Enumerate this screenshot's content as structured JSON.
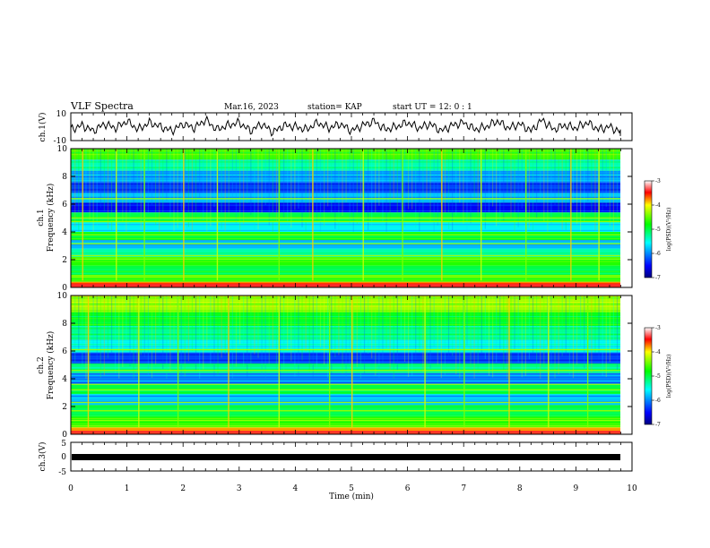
{
  "header": {
    "title": "VLF Spectra",
    "date": "Mar.16, 2023",
    "station": "station= KAP",
    "start": "start  UT  =   12: 0  : 1"
  },
  "chart_data": [
    {
      "type": "line",
      "name": "ch1-waveform",
      "ylabel": "ch.1(V)",
      "ylim": [
        -10,
        10
      ],
      "y_ticks": [
        "10",
        "-10"
      ],
      "x": [
        0,
        0.2,
        0.4,
        0.6,
        0.8,
        1.0,
        1.2,
        1.4,
        1.6,
        1.8,
        2.0,
        2.2,
        2.4,
        2.6,
        2.8,
        3.0,
        3.2,
        3.4,
        3.6,
        3.8,
        4.0,
        4.2,
        4.4,
        4.6,
        4.8,
        5.0,
        5.2,
        5.4,
        5.6,
        5.8,
        6.0,
        6.2,
        6.4,
        6.6,
        6.8,
        7.0,
        7.2,
        7.4,
        7.6,
        7.8,
        8.0,
        8.2,
        8.4,
        8.6,
        8.8,
        9.0,
        9.2,
        9.4,
        9.6,
        9.8
      ],
      "y": [
        -2,
        1,
        -3,
        2,
        -1,
        4,
        -2,
        3,
        0,
        -3,
        2,
        -1,
        5,
        -2,
        1,
        3,
        -3,
        2,
        -4,
        1,
        0,
        -2,
        3,
        -1,
        2,
        -3,
        1,
        4,
        -2,
        0,
        3,
        -1,
        2,
        -3,
        1,
        3,
        -2,
        0,
        4,
        -1,
        2,
        -3,
        5,
        -2,
        1,
        -1,
        3,
        -2,
        0,
        -4
      ]
    },
    {
      "type": "heatmap",
      "name": "ch1-spectrogram",
      "ylabel": "ch.1\nFrequency (kHz)",
      "ylim": [
        0,
        10
      ],
      "y_ticks": [
        "0",
        "2",
        "4",
        "6",
        "8",
        "10"
      ],
      "colorbar": {
        "label": "log(PSD)(V²/Hz)",
        "range": [
          -7,
          -3
        ],
        "ticks": [
          "-3",
          "-4",
          "-5",
          "-6",
          "-7"
        ]
      },
      "bands_khz": [
        {
          "f0": 9.2,
          "f1": 10,
          "level": -4.6
        },
        {
          "f0": 8.4,
          "f1": 9.2,
          "level": -5.3
        },
        {
          "f0": 7.6,
          "f1": 8.4,
          "level": -5.9
        },
        {
          "f0": 6.8,
          "f1": 7.6,
          "level": -6.3
        },
        {
          "f0": 6.1,
          "f1": 6.8,
          "level": -5.8
        },
        {
          "f0": 5.4,
          "f1": 6.1,
          "level": -6.5
        },
        {
          "f0": 4.7,
          "f1": 5.4,
          "level": -5.0
        },
        {
          "f0": 4.0,
          "f1": 4.7,
          "level": -5.6
        },
        {
          "f0": 3.4,
          "f1": 4.0,
          "level": -4.9
        },
        {
          "f0": 2.8,
          "f1": 3.4,
          "level": -5.8
        },
        {
          "f0": 2.2,
          "f1": 2.8,
          "level": -5.3
        },
        {
          "f0": 1.6,
          "f1": 2.2,
          "level": -4.7
        },
        {
          "f0": 0.9,
          "f1": 1.6,
          "level": -5.0
        },
        {
          "f0": 0.4,
          "f1": 0.9,
          "level": -4.6
        },
        {
          "f0": 0.0,
          "f1": 0.4,
          "level": -3.6
        }
      ],
      "lines_khz": [
        6.4,
        5.0,
        4.75,
        3.8,
        3.15,
        2.3,
        2.05,
        0.85
      ],
      "spike_times_min": [
        0.2,
        0.8,
        1.3,
        2.0,
        2.6,
        3.7,
        4.3,
        5.2,
        5.9,
        6.6,
        7.3,
        8.1,
        8.9,
        9.4
      ]
    },
    {
      "type": "heatmap",
      "name": "ch2-spectrogram",
      "ylabel": "ch.2\nFrequency (kHz)",
      "ylim": [
        0,
        10
      ],
      "y_ticks": [
        "0",
        "2",
        "4",
        "6",
        "8",
        "10"
      ],
      "colorbar": {
        "label": "log(PSD)(V²/Hz)",
        "range": [
          -7,
          -3
        ],
        "ticks": [
          "-3",
          "-4",
          "-5",
          "-6",
          "-7"
        ]
      },
      "bands_khz": [
        {
          "f0": 8.8,
          "f1": 10,
          "level": -4.3
        },
        {
          "f0": 7.8,
          "f1": 8.8,
          "level": -4.9
        },
        {
          "f0": 6.8,
          "f1": 7.8,
          "level": -5.2
        },
        {
          "f0": 5.9,
          "f1": 6.8,
          "level": -5.5
        },
        {
          "f0": 5.1,
          "f1": 5.9,
          "level": -6.3
        },
        {
          "f0": 4.4,
          "f1": 5.1,
          "level": -5.2
        },
        {
          "f0": 3.6,
          "f1": 4.4,
          "level": -6.0
        },
        {
          "f0": 2.9,
          "f1": 3.6,
          "level": -5.0
        },
        {
          "f0": 2.1,
          "f1": 2.9,
          "level": -5.8
        },
        {
          "f0": 1.3,
          "f1": 2.1,
          "level": -5.0
        },
        {
          "f0": 0.5,
          "f1": 1.3,
          "level": -4.7
        },
        {
          "f0": 0.0,
          "f1": 0.5,
          "level": -3.8
        }
      ],
      "lines_khz": [
        6.1,
        4.6,
        3.6,
        3.2,
        2.3,
        1.7,
        1.0,
        0.6
      ],
      "spike_times_min": [
        0.3,
        1.2,
        1.9,
        2.8,
        3.7,
        4.6,
        5.0,
        6.3,
        7.0,
        7.8,
        8.5,
        9.2
      ]
    },
    {
      "type": "line",
      "name": "ch3-waveform",
      "ylabel": "ch.3(V)",
      "ylim": [
        -5,
        5
      ],
      "y_ticks": [
        "5",
        "0",
        "-5"
      ],
      "level": 0
    }
  ],
  "xaxis": {
    "label": "Time  (min)",
    "ticks": [
      "0",
      "1",
      "2",
      "3",
      "4",
      "5",
      "6",
      "7",
      "8",
      "9",
      "10"
    ],
    "xlim": [
      0,
      10
    ]
  }
}
